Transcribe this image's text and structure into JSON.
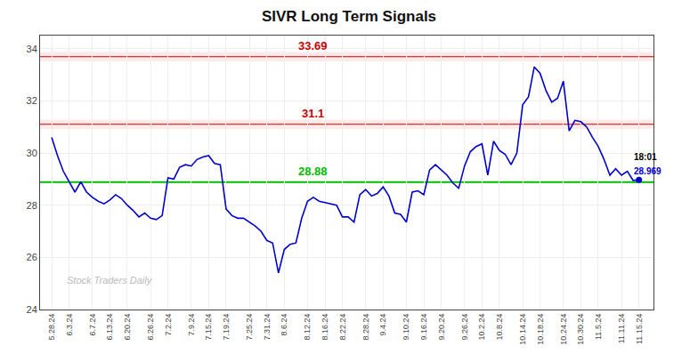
{
  "chart_data": {
    "type": "line",
    "title": "SIVR Long Term Signals",
    "categories": [
      "5.28.24",
      null,
      null,
      "6.3.24",
      null,
      null,
      null,
      "6.7.24",
      null,
      null,
      "6.13.24",
      null,
      null,
      "6.20.24",
      null,
      null,
      null,
      "6.26.24",
      null,
      null,
      "7.2.24",
      null,
      null,
      null,
      "7.9.24",
      null,
      null,
      "7.15.24",
      null,
      null,
      "7.19.24",
      null,
      null,
      null,
      "7.25.24",
      null,
      null,
      "7.31.24",
      null,
      null,
      "8.6.24",
      null,
      null,
      null,
      "8.12.24",
      null,
      null,
      "8.16.24",
      null,
      null,
      "8.22.24",
      null,
      null,
      null,
      "8.28.24",
      null,
      null,
      "9.4.24",
      null,
      null,
      null,
      "9.10.24",
      null,
      null,
      "9.16.24",
      null,
      null,
      "9.20.24",
      null,
      null,
      null,
      "9.26.24",
      null,
      null,
      "10.2.24",
      null,
      null,
      "10.8.24",
      null,
      null,
      null,
      "10.14.24",
      null,
      null,
      "10.18.24",
      null,
      null,
      null,
      "10.24.24",
      null,
      null,
      "10.30.24",
      null,
      null,
      "11.5.24",
      null,
      null,
      null,
      "11.11.24",
      null,
      null,
      "11.15.24"
    ],
    "values": [
      30.6,
      29.9,
      29.3,
      28.9,
      28.5,
      28.9,
      28.5,
      28.3,
      28.15,
      28.05,
      28.2,
      28.4,
      28.25,
      28.0,
      27.8,
      27.55,
      27.7,
      27.5,
      27.45,
      27.6,
      29.05,
      29.0,
      29.45,
      29.55,
      29.5,
      29.75,
      29.85,
      29.9,
      29.6,
      29.55,
      27.85,
      27.6,
      27.5,
      27.5,
      27.35,
      27.2,
      27.0,
      26.65,
      26.55,
      25.4,
      26.3,
      26.5,
      26.55,
      27.5,
      28.15,
      28.3,
      28.15,
      28.1,
      28.05,
      28.0,
      27.55,
      27.55,
      27.35,
      28.4,
      28.6,
      28.35,
      28.45,
      28.7,
      28.35,
      27.7,
      27.65,
      27.35,
      28.5,
      28.55,
      28.4,
      29.35,
      29.55,
      29.35,
      29.15,
      28.85,
      28.65,
      29.5,
      30.05,
      30.25,
      30.35,
      29.15,
      30.45,
      30.1,
      29.95,
      29.55,
      30.0,
      31.85,
      32.15,
      33.3,
      33.05,
      32.4,
      31.95,
      32.1,
      32.75,
      30.85,
      31.25,
      31.2,
      31.0,
      30.6,
      30.25,
      29.75,
      29.15,
      29.4,
      29.15,
      29.3,
      28.95,
      28.969
    ],
    "color": "#0000cc",
    "last_point_color": "#0000cc",
    "hlines": [
      {
        "value": 28.88,
        "label": "28.88",
        "color": "#00bb00"
      },
      {
        "value": 31.1,
        "label": "31.1",
        "color": "#cc0000",
        "band": true
      },
      {
        "value": 33.69,
        "label": "33.69",
        "color": "#cc0000",
        "band": true
      }
    ],
    "annotations": [
      {
        "text": "18:01",
        "color": "#000000"
      },
      {
        "text": "28.969",
        "color": "#0000cc"
      }
    ],
    "watermark": {
      "text": "Stock Traders Daily",
      "color": "#bbbbbb"
    },
    "ylim": [
      24.0,
      34.5
    ],
    "yticks": [
      24,
      26,
      28,
      30,
      32,
      34
    ],
    "grid": true
  }
}
